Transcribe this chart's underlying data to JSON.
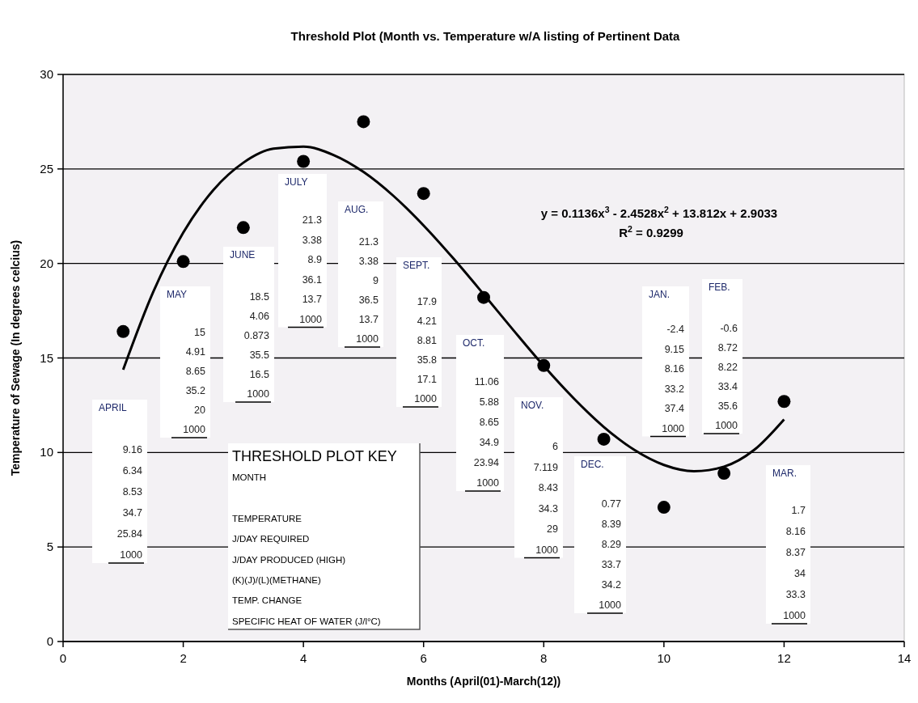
{
  "chart_data": {
    "type": "scatter",
    "title": "Threshold Plot (Month vs. Temperature w/A listing of Pertinent Data",
    "xlabel": "Months (April(01)-March(12))",
    "ylabel": "Temperature of Sewage (In degrees celcius)",
    "xlim": [
      0,
      14
    ],
    "xticks": [
      0,
      2,
      4,
      6,
      8,
      10,
      12,
      14
    ],
    "ylim": [
      0,
      30
    ],
    "yticks": [
      0,
      5,
      10,
      15,
      20,
      25,
      30
    ],
    "grid": "y",
    "series": [
      {
        "type": "scatter",
        "color": "#000000",
        "marker": "circle",
        "x": [
          1,
          2,
          3,
          4,
          5,
          6,
          7,
          8,
          9,
          10,
          11,
          12
        ],
        "values": [
          16.4,
          20.1,
          21.9,
          25.4,
          27.5,
          23.7,
          18.2,
          14.6,
          10.7,
          7.1,
          8.9,
          12.7
        ]
      },
      {
        "type": "line",
        "color": "#000000",
        "marker": "none",
        "line_style": "solid",
        "x": [
          1,
          1.5,
          2,
          2.5,
          3,
          3.5,
          4,
          4.5,
          5,
          5.5,
          6,
          6.5,
          7,
          7.5,
          8,
          8.5,
          9,
          9.5,
          10,
          10.5,
          11,
          11.5,
          12
        ],
        "values": [
          14.38,
          18.49,
          21.63,
          23.88,
          25.33,
          26.07,
          26.18,
          25.74,
          24.84,
          23.57,
          22.01,
          20.25,
          18.37,
          16.45,
          14.58,
          12.86,
          11.35,
          10.15,
          9.34,
          9.01,
          9.25,
          10.13,
          11.75
        ]
      }
    ],
    "annotations": [
      "APRIL\n\n9.16\n6.34\n8.53\n34.7\n25.84\n1000",
      "MAY\n\n15\n4.91\n8.65\n35.2\n20\n1000",
      "JUNE\n\n18.5\n4.06\n0.873\n35.5\n16.5\n1000",
      "JULY\n\n21.3\n3.38\n8.9\n36.1\n13.7\n1000",
      "AUG.\n\n21.3\n3.38\n9\n36.5\n13.7\n1000",
      "SEPT.\n\n17.9\n4.21\n8.81\n35.8\n17.1\n1000",
      "OCT.\n\n11.06\n5.88\n8.65\n34.9\n23.94\n1000",
      "NOV.\n\n6\n7.119\n8.43\n34.3\n29\n1000",
      "DEC.\n\n0.77\n8.39\n8.29\n33.7\n34.2\n1000",
      "JAN.\n\n-2.4\n9.15\n8.16\n33.2\n37.4\n1000",
      "FEB.\n\n-0.6\n8.72\n8.22\n33.4\n35.6\n1000",
      "MAR.\n\n1.7\n8.16\n8.37\n34\n33.3\n1000",
      "THRESHOLD PLOT KEY\nMONTH\n\nTEMPERATURE\nJ/DAY REQUIRED\nJ/DAY PRODUCED (HIGH)\n(K)(J)/(L)(METHANE)\nTEMP. CHANGE\nSPECIFIC HEAT OF WATER (J/l°C)",
      "y = 0.1136x$^{3}$ - 2.4528x$^{2}$ + 13.812x + 2.9033",
      "R$^{2}$ = 0.9299"
    ]
  }
}
